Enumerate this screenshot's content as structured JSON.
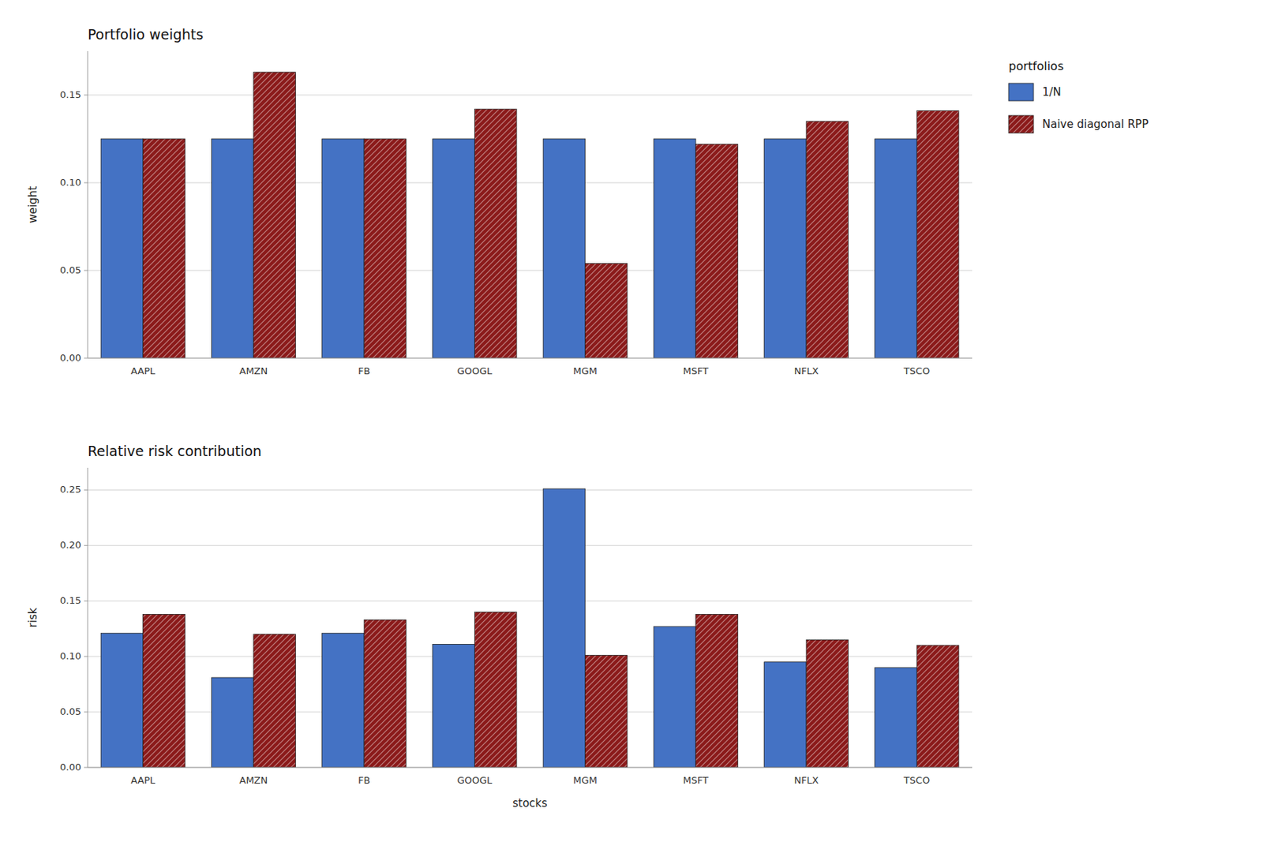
{
  "chart_data": [
    {
      "type": "bar",
      "title": "Portfolio weights",
      "y_label": "weight",
      "categories": [
        "AAPL",
        "AMZN",
        "FB",
        "GOOGL",
        "MGM",
        "MSFT",
        "NFLX",
        "TSCO"
      ],
      "series": [
        {
          "name": "1/N",
          "color": "#4472C4",
          "values": [
            0.125,
            0.125,
            0.125,
            0.125,
            0.125,
            0.125,
            0.125,
            0.125
          ]
        },
        {
          "name": "Naive diagonal RPP",
          "color": "#8B1A1A",
          "values": [
            0.125,
            0.163,
            0.125,
            0.142,
            0.054,
            0.122,
            0.135,
            0.141
          ]
        }
      ],
      "ylim": [
        0,
        0.175
      ],
      "yticks": [
        {
          "value": 0,
          "label": "0.00"
        },
        0.05,
        {
          "value": 0.1,
          "label": "0.10"
        },
        0.15
      ],
      "grid": true,
      "legend": "upper right",
      "legend_title": "portfolios"
    },
    {
      "type": "bar",
      "title": "Relative risk contribution",
      "y_label": "risk",
      "x_label": "stocks",
      "categories": [
        "AAPL",
        "AMZN",
        "FB",
        "GOOGL",
        "MGM",
        "MSFT",
        "NFLX",
        "TSCO"
      ],
      "series": [
        {
          "name": "1/N",
          "color": "#4472C4",
          "values": [
            0.121,
            0.081,
            0.121,
            0.111,
            0.251,
            0.127,
            0.095,
            0.09
          ]
        },
        {
          "name": "Naive diagonal RPP",
          "color": "#8B1A1A",
          "values": [
            0.138,
            0.12,
            0.133,
            0.14,
            0.101,
            0.138,
            0.115,
            0.11
          ]
        }
      ],
      "ylim": [
        0,
        0.27
      ],
      "yticks": [
        {
          "value": 0,
          "label": "0.00"
        },
        0.05,
        {
          "value": 0.1,
          "label": "0.10"
        },
        0.15,
        {
          "value": 0.2,
          "label": "0.20"
        },
        0.25
      ],
      "grid": true
    }
  ]
}
